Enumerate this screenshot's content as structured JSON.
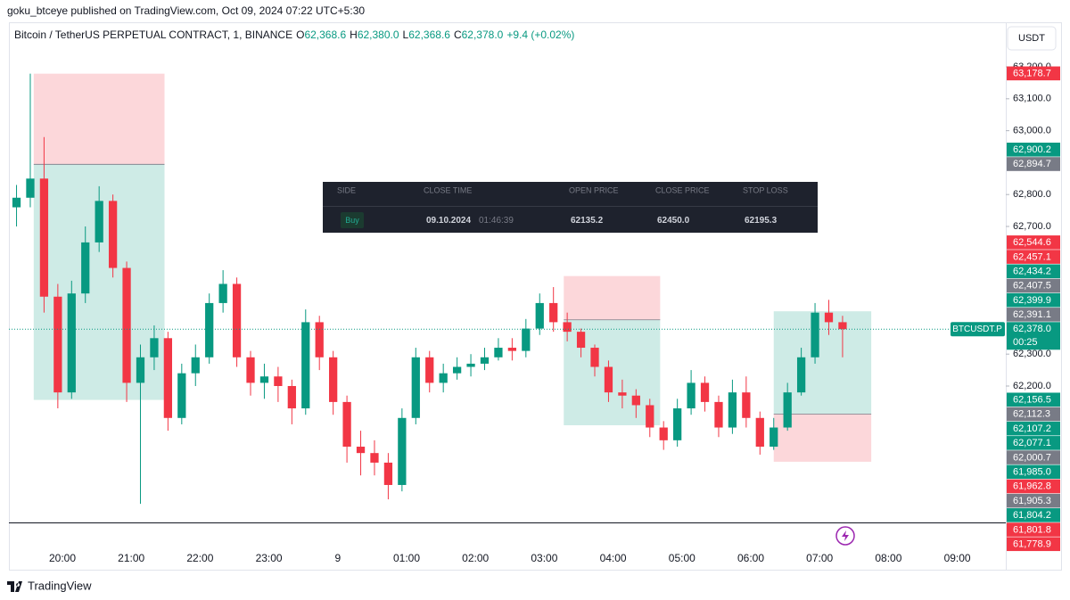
{
  "published": "goku_btceye published on TradingView.com, Oct 09, 2024 07:22 UTC+5:30",
  "chart_data": {
    "type": "candlestick",
    "symbol": "Bitcoin / TetherUS PERPETUAL CONTRACT, 1, BINANCE",
    "ohlc_legend": [
      {
        "key": "O",
        "value": "62,368.6"
      },
      {
        "key": "H",
        "value": "62,380.0"
      },
      {
        "key": "L",
        "value": "62,368.6"
      },
      {
        "key": "C",
        "value": "62,378.0"
      }
    ],
    "change": "+9.4 (+0.02%)",
    "currency": "USDT",
    "x": [
      "19:20",
      "19:32",
      "19:44",
      "19:56",
      "20:08",
      "20:20",
      "20:32",
      "20:44",
      "20:56",
      "21:08",
      "21:20",
      "21:32",
      "21:44",
      "21:56",
      "22:08",
      "22:20",
      "22:32",
      "22:44",
      "22:56",
      "23:08",
      "23:20",
      "23:32",
      "23:44",
      "23:56",
      "00:08",
      "00:20",
      "00:32",
      "00:44",
      "00:56",
      "01:08",
      "01:20",
      "01:32",
      "01:44",
      "01:56",
      "02:08",
      "02:20",
      "02:32",
      "02:44",
      "02:56",
      "03:08",
      "03:20",
      "03:32",
      "03:44",
      "03:56",
      "04:08",
      "04:20",
      "04:32",
      "04:44",
      "04:56",
      "05:08",
      "05:20",
      "05:32",
      "05:44",
      "05:56",
      "06:08",
      "06:20",
      "06:32",
      "06:44",
      "06:56",
      "07:08",
      "07:20"
    ],
    "open": [
      62760,
      62790,
      62850,
      62480,
      62180,
      62490,
      62650,
      62780,
      62570,
      62210,
      62290,
      62350,
      62100,
      62240,
      62290,
      62460,
      62520,
      62290,
      62210,
      62230,
      62200,
      62130,
      62400,
      62290,
      62150,
      62010,
      61990,
      61960,
      61890,
      62100,
      62290,
      62210,
      62240,
      62260,
      62270,
      62290,
      62320,
      62310,
      62380,
      62460,
      62400,
      62370,
      62320,
      62260,
      62180,
      62170,
      62140,
      62070,
      62030,
      62130,
      62210,
      62150,
      62070,
      62180,
      62100,
      62010,
      62070,
      62180,
      62290,
      62430,
      62400
    ],
    "high": [
      62830,
      63178.7,
      62980,
      62520,
      62530,
      62700,
      62826,
      62800,
      62590,
      62330,
      62390,
      62370,
      62270,
      62330,
      62490,
      62563,
      62540,
      62310,
      62270,
      62260,
      62220,
      62440,
      62420,
      62310,
      62170,
      62060,
      62030,
      61990,
      62130,
      62320,
      62310,
      62270,
      62290,
      62300,
      62320,
      62350,
      62350,
      62410,
      62490,
      62510,
      62430,
      62380,
      62330,
      62280,
      62220,
      62190,
      62160,
      62090,
      62160,
      62250,
      62230,
      62170,
      62220,
      62230,
      62120,
      62100,
      62210,
      62320,
      62460,
      62470,
      62420
    ],
    "low": [
      62700,
      62760,
      62430,
      62130,
      62160,
      62460,
      62620,
      62540,
      62150,
      61831,
      62250,
      62060,
      62080,
      62200,
      62270,
      62430,
      62260,
      62170,
      62160,
      62150,
      62080,
      62110,
      62250,
      62110,
      61960,
      61920,
      61920,
      61845,
      61870,
      62080,
      62180,
      62180,
      62220,
      62230,
      62250,
      62280,
      62280,
      62290,
      62360,
      62370,
      62340,
      62290,
      62230,
      62150,
      62130,
      62100,
      62040,
      62000,
      62010,
      62110,
      62120,
      62040,
      62050,
      62070,
      61985,
      62000,
      62060,
      62170,
      62270,
      62360,
      62290
    ],
    "close": [
      62790,
      62850,
      62480,
      62180,
      62490,
      62650,
      62780,
      62570,
      62210,
      62290,
      62350,
      62100,
      62240,
      62290,
      62460,
      62520,
      62290,
      62210,
      62230,
      62200,
      62130,
      62400,
      62290,
      62150,
      62010,
      61990,
      61960,
      61890,
      62100,
      62290,
      62210,
      62240,
      62260,
      62270,
      62290,
      62320,
      62310,
      62380,
      62460,
      62400,
      62370,
      62320,
      62260,
      62180,
      62170,
      62140,
      62070,
      62030,
      62130,
      62210,
      62150,
      62070,
      62180,
      62100,
      62010,
      62070,
      62180,
      62290,
      62430,
      62400,
      62378
    ],
    "up_color": "#089981",
    "down_color": "#f23645",
    "ylim": [
      61772.6,
      63339.7
    ],
    "yticks": [
      {
        "value": 63200,
        "label": "63,200.0"
      },
      {
        "value": 63100,
        "label": "63,100.0"
      },
      {
        "value": 63000,
        "label": "63,000.0"
      },
      {
        "value": 62800,
        "label": "62,800.0"
      },
      {
        "value": 62700,
        "label": "62,700.0"
      },
      {
        "value": 62300,
        "label": "62,300.0"
      },
      {
        "value": 62200,
        "label": "62,200.0"
      }
    ],
    "xticks": [
      "20:00",
      "21:00",
      "22:00",
      "23:00",
      "9",
      "01:00",
      "02:00",
      "03:00",
      "04:00",
      "05:00",
      "06:00",
      "07:00",
      "08:00",
      "09:00"
    ],
    "last_price": {
      "value": 62378.0,
      "label": "62,378.0",
      "countdown": "00:25",
      "symbol": "BTCUSDT.P"
    },
    "positions": [
      {
        "start": "19:35",
        "end": "21:29",
        "stop": {
          "value": 63178.7,
          "label": "63,178.7"
        },
        "entry": {
          "value": 62894.7,
          "label": "62,894.7"
        },
        "target": {
          "value": 62156.5,
          "label": "62,156.5"
        }
      },
      {
        "start": "03:17",
        "end": "04:41",
        "stop": {
          "value": 62544.6,
          "label": "62,544.6"
        },
        "entry": {
          "value": 62407.5,
          "label": "62,407.5"
        },
        "target": {
          "value": 62077.1,
          "label": "62,077.1"
        }
      },
      {
        "start": "06:20",
        "end": "07:45",
        "stop": {
          "value": 61962.8,
          "label": "61,962.8"
        },
        "entry": {
          "value": 62112.3,
          "label": "62,112.3"
        },
        "target": {
          "value": 62434.2,
          "label": "62,434.2"
        }
      }
    ],
    "level_colors": {
      "stop": "#f23645",
      "entry": "#787b86",
      "target": "#089981"
    },
    "price_labels": [
      {
        "value": 62900.2,
        "label": "62,900.2",
        "color": "#089981"
      },
      {
        "value": 62457.1,
        "label": "62,457.1",
        "color": "#f23645"
      },
      {
        "value": 62399.9,
        "label": "62,399.9",
        "color": "#089981"
      },
      {
        "value": 62391.1,
        "label": "62,391.1",
        "color": "#787b86"
      },
      {
        "value": 62107.2,
        "label": "62,107.2",
        "color": "#089981"
      },
      {
        "value": 62000.7,
        "label": "62,000.7",
        "color": "#787b86"
      },
      {
        "value": 61985.0,
        "label": "61,985.0",
        "color": "#089981"
      },
      {
        "value": 61905.3,
        "label": "61,905.3",
        "color": "#787b86"
      },
      {
        "value": 61804.2,
        "label": "61,804.2",
        "color": "#089981"
      },
      {
        "value": 61801.8,
        "label": "61,801.8",
        "color": "#f23645"
      },
      {
        "value": 61778.9,
        "label": "61,778.9",
        "color": "#f23645"
      }
    ]
  },
  "trade_table": {
    "headers": [
      "SIDE",
      "CLOSE TIME",
      "OPEN PRICE",
      "CLOSE PRICE",
      "STOP LOSS"
    ],
    "side": "Buy",
    "date": "09.10.2024",
    "time": "01:46:39",
    "open_price": "62135.2",
    "close_price": "62450.0",
    "stop_loss": "62195.3"
  },
  "footer": "TradingView"
}
